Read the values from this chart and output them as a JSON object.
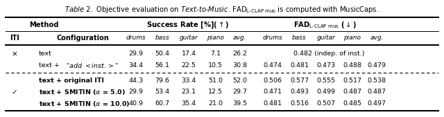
{
  "title": "Table 2. Objective evaluation on Text-to-Music. FAD",
  "title_suffix": " is computed with MusicCaps.",
  "col_headers_top": [
    "Method",
    "Success Rate [%](↑)",
    "FADₓ(↓)"
  ],
  "col_headers_sub": [
    "ITI",
    "Configuration",
    "drums",
    "bass",
    "guitar",
    "piano",
    "avg.",
    "drums",
    "bass",
    "guitar",
    "piano",
    "avg."
  ],
  "rows": [
    {
      "iti": "×",
      "config": "text",
      "sr": [
        "29.9",
        "50.4",
        "17.4",
        "7.1",
        "26.2"
      ],
      "fad": [
        "",
        "0.482 (indep. of inst.)",
        "",
        "",
        ""
      ]
    },
    {
      "iti": "",
      "config": "text + “add <inst.>”",
      "sr": [
        "34.4",
        "56.1",
        "22.5",
        "10.5",
        "30.8"
      ],
      "fad": [
        "0.474",
        "0.481",
        "0.473",
        "0.488",
        "0.479"
      ]
    },
    {
      "iti": "",
      "config": "text + original ITI",
      "sr": [
        "44.3",
        "79.6",
        "33.4",
        "51.0",
        "52.0"
      ],
      "fad": [
        "0.506",
        "0.577",
        "0.555",
        "0.517",
        "0.538"
      ],
      "bold": true
    },
    {
      "iti": "✓",
      "config": "text + SMITIN (α = 5.0)",
      "sr": [
        "29.9",
        "53.4",
        "23.1",
        "12.5",
        "29.7"
      ],
      "fad": [
        "0.471",
        "0.493",
        "0.499",
        "0.487",
        "0.487"
      ],
      "bold": true
    },
    {
      "iti": "",
      "config": "text + SMITIN (α = 10.0)",
      "sr": [
        "40.9",
        "60.7",
        "35.4",
        "21.0",
        "39.5"
      ],
      "fad": [
        "0.481",
        "0.516",
        "0.507",
        "0.485",
        "0.497"
      ],
      "bold": true
    }
  ],
  "background_color": "#ffffff"
}
